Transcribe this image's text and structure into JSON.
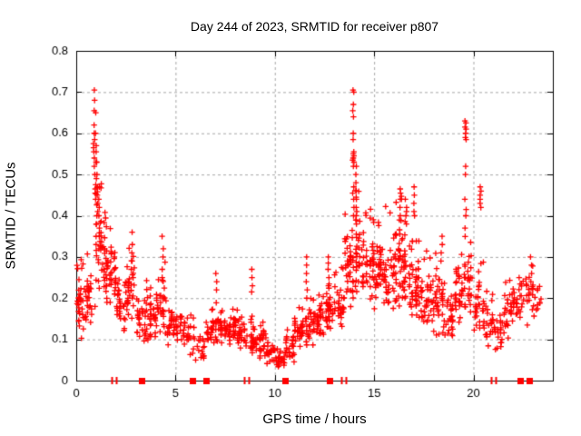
{
  "title": "Day 244 of 2023, SRMTID for receiver p807",
  "chart_data": {
    "type": "scatter",
    "title": "Day 244 of 2023, SRMTID for receiver p807",
    "xlabel": "GPS time / hours",
    "ylabel": "SRMTID / TECUs",
    "xlim": [
      0,
      24
    ],
    "ylim": [
      0,
      0.8
    ],
    "xticks": [
      0,
      5,
      10,
      15,
      20
    ],
    "xtick_labels": [
      "0",
      "5",
      "10",
      "15",
      "20"
    ],
    "yticks": [
      0,
      0.1,
      0.2,
      0.3,
      0.4,
      0.5,
      0.6,
      0.7,
      0.8
    ],
    "ytick_labels": [
      "0",
      "0.1",
      "0.2",
      "0.3",
      "0.4",
      "0.5",
      "0.6",
      "0.7",
      "0.8"
    ],
    "grid": true,
    "grid_color": "#a8a8a8",
    "axis_color": "#000000",
    "marker": "plus",
    "marker_color": "#ff0000",
    "series_name": "SRMTID",
    "seed": 20230244,
    "band_bins": [
      [
        0.0,
        38,
        0.09,
        0.26
      ],
      [
        0.5,
        24,
        0.12,
        0.28
      ],
      [
        1.0,
        42,
        0.2,
        0.45
      ],
      [
        1.5,
        42,
        0.18,
        0.35
      ],
      [
        2.0,
        30,
        0.1,
        0.26
      ],
      [
        2.5,
        32,
        0.14,
        0.3
      ],
      [
        3.0,
        26,
        0.09,
        0.21
      ],
      [
        3.5,
        34,
        0.09,
        0.22
      ],
      [
        4.0,
        30,
        0.1,
        0.26
      ],
      [
        4.5,
        26,
        0.08,
        0.18
      ],
      [
        5.0,
        26,
        0.08,
        0.18
      ],
      [
        5.5,
        18,
        0.06,
        0.15
      ],
      [
        6.0,
        16,
        0.04,
        0.12
      ],
      [
        6.5,
        24,
        0.07,
        0.16
      ],
      [
        7.0,
        30,
        0.08,
        0.18
      ],
      [
        7.5,
        30,
        0.08,
        0.17
      ],
      [
        8.0,
        30,
        0.07,
        0.17
      ],
      [
        8.5,
        28,
        0.05,
        0.14
      ],
      [
        9.0,
        28,
        0.05,
        0.13
      ],
      [
        9.5,
        25,
        0.03,
        0.1
      ],
      [
        10.0,
        25,
        0.02,
        0.08
      ],
      [
        10.5,
        28,
        0.04,
        0.12
      ],
      [
        11.0,
        30,
        0.07,
        0.16
      ],
      [
        11.5,
        30,
        0.08,
        0.18
      ],
      [
        12.0,
        30,
        0.1,
        0.2
      ],
      [
        12.5,
        32,
        0.1,
        0.22
      ],
      [
        13.0,
        32,
        0.12,
        0.25
      ],
      [
        13.5,
        40,
        0.16,
        0.38
      ],
      [
        14.0,
        38,
        0.2,
        0.42
      ],
      [
        14.5,
        35,
        0.18,
        0.38
      ],
      [
        15.0,
        35,
        0.16,
        0.36
      ],
      [
        15.5,
        35,
        0.15,
        0.38
      ],
      [
        16.0,
        38,
        0.15,
        0.4
      ],
      [
        16.5,
        38,
        0.14,
        0.38
      ],
      [
        17.0,
        35,
        0.12,
        0.32
      ],
      [
        17.5,
        32,
        0.1,
        0.28
      ],
      [
        18.0,
        30,
        0.1,
        0.3
      ],
      [
        18.5,
        28,
        0.08,
        0.22
      ],
      [
        19.0,
        30,
        0.12,
        0.3
      ],
      [
        19.5,
        30,
        0.12,
        0.32
      ],
      [
        20.0,
        28,
        0.1,
        0.26
      ],
      [
        20.5,
        25,
        0.08,
        0.2
      ],
      [
        21.0,
        22,
        0.06,
        0.16
      ],
      [
        21.5,
        25,
        0.1,
        0.22
      ],
      [
        22.0,
        25,
        0.12,
        0.26
      ],
      [
        22.5,
        20,
        0.12,
        0.3
      ],
      [
        23.0,
        12,
        0.14,
        0.24
      ]
    ],
    "spike_columns": [
      {
        "t": 0.9,
        "values": [
          0.705,
          0.68,
          0.655,
          0.62,
          0.6,
          0.585,
          0.575,
          0.565,
          0.555,
          0.54,
          0.52,
          0.5
        ]
      },
      {
        "t": 0.98,
        "values": [
          0.65,
          0.6,
          0.57,
          0.555,
          0.53,
          0.49,
          0.475,
          0.465,
          0.455,
          0.44
        ]
      },
      {
        "t": 1.05,
        "values": [
          0.53,
          0.5,
          0.47,
          0.45,
          0.43,
          0.41,
          0.4,
          0.38
        ]
      },
      {
        "t": 1.15,
        "values": [
          0.47,
          0.44,
          0.42,
          0.4,
          0.37,
          0.35
        ]
      },
      {
        "t": 2.8,
        "values": [
          0.36,
          0.33,
          0.31,
          0.29,
          0.27
        ]
      },
      {
        "t": 4.35,
        "values": [
          0.35,
          0.32,
          0.3,
          0.27,
          0.25
        ]
      },
      {
        "t": 7.05,
        "values": [
          0.26,
          0.24,
          0.22
        ]
      },
      {
        "t": 8.85,
        "values": [
          0.27,
          0.25,
          0.23,
          0.215
        ]
      },
      {
        "t": 11.6,
        "values": [
          0.3,
          0.28,
          0.26,
          0.24,
          0.22,
          0.2
        ]
      },
      {
        "t": 12.7,
        "values": [
          0.3,
          0.285,
          0.27,
          0.25,
          0.23
        ]
      },
      {
        "t": 13.95,
        "values": [
          0.705,
          0.7,
          0.67,
          0.655,
          0.64,
          0.6,
          0.585,
          0.555,
          0.55,
          0.545,
          0.54,
          0.535,
          0.53,
          0.52,
          0.47,
          0.455,
          0.44,
          0.42,
          0.4
        ]
      },
      {
        "t": 14.1,
        "values": [
          0.52,
          0.5,
          0.48,
          0.46,
          0.44,
          0.42,
          0.41,
          0.4,
          0.39,
          0.38
        ]
      },
      {
        "t": 16.3,
        "values": [
          0.465,
          0.455,
          0.44,
          0.42,
          0.4,
          0.39
        ]
      },
      {
        "t": 16.6,
        "values": [
          0.44,
          0.42,
          0.41,
          0.4,
          0.38
        ]
      },
      {
        "t": 17.0,
        "values": [
          0.47,
          0.45,
          0.43,
          0.41,
          0.4
        ]
      },
      {
        "t": 18.4,
        "values": [
          0.35,
          0.33,
          0.31,
          0.29
        ]
      },
      {
        "t": 19.6,
        "values": [
          0.63,
          0.625,
          0.615,
          0.61,
          0.6,
          0.59,
          0.585,
          0.52,
          0.5,
          0.44,
          0.415,
          0.4,
          0.37
        ]
      },
      {
        "t": 20.35,
        "values": [
          0.47,
          0.46,
          0.45,
          0.44,
          0.43,
          0.42
        ]
      },
      {
        "t": 22.9,
        "values": [
          0.3,
          0.28,
          0.26,
          0.24
        ]
      }
    ],
    "zero_markers": {
      "squares_t": [
        3.3,
        5.86,
        6.55,
        10.5,
        12.75,
        22.35,
        22.8
      ],
      "tick_pairs_t": [
        1.92,
        8.6,
        13.5,
        21.05
      ]
    }
  }
}
